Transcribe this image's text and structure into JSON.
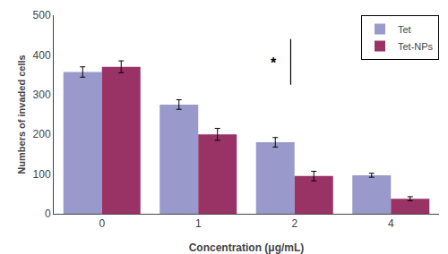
{
  "chart_data": {
    "type": "bar",
    "categories": [
      "0",
      "1",
      "2",
      "4"
    ],
    "series": [
      {
        "name": "Tet",
        "color": "#9999cc",
        "values": [
          357,
          275,
          180,
          97
        ],
        "errors": [
          13,
          12,
          12,
          5
        ]
      },
      {
        "name": "Tet-NPs",
        "color": "#993366",
        "values": [
          370,
          200,
          95,
          38
        ],
        "errors": [
          15,
          15,
          12,
          5
        ]
      }
    ],
    "xlabel": "Concentration (μg/mL)",
    "ylabel": "Numbers of invaded cells",
    "ylim": [
      0,
      500
    ],
    "yticks": [
      0,
      100,
      200,
      300,
      400,
      500
    ],
    "grid": false,
    "legend": "upper right",
    "annotations": [
      {
        "text": "*"
      }
    ]
  }
}
